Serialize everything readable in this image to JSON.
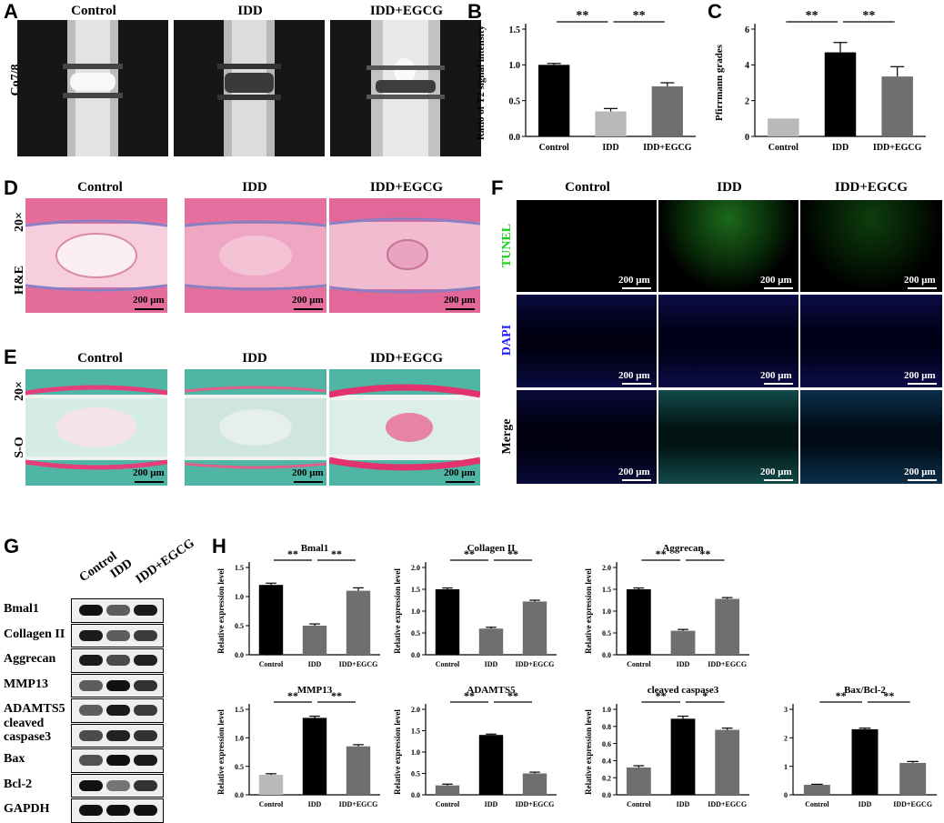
{
  "panel_letters": {
    "A": "A",
    "B": "B",
    "C": "C",
    "D": "D",
    "E": "E",
    "F": "F",
    "G": "G",
    "H": "H"
  },
  "groups": [
    "Control",
    "IDD",
    "IDD+EGCG"
  ],
  "row_labels": {
    "mri": "Co7/8",
    "he": "H&E",
    "so": "S-O",
    "mag_d": "20×",
    "mag_e": "20×",
    "tunel": "TUNEL",
    "dapi": "DAPI",
    "merge": "Merge"
  },
  "colors": {
    "tunel": "#18d018",
    "dapi": "#2020ff",
    "control_bar": "#b9b9b9",
    "idd_bar": "#000000",
    "egcg_bar": "#6f6f6f"
  },
  "scale_text": "200 μm",
  "western": {
    "columns": [
      "Control",
      "IDD",
      "IDD+EGCG"
    ],
    "rows": [
      "Bmal1",
      "Collagen II",
      "Aggrecan",
      "MMP13",
      "ADAMTS5",
      "cleaved caspase3",
      "Bax",
      "Bcl-2",
      "GAPDH"
    ]
  },
  "chart_data": [
    {
      "id": "B",
      "type": "bar",
      "categories": [
        "Control",
        "IDD",
        "IDD+EGCG"
      ],
      "values": [
        1.0,
        0.35,
        0.7
      ],
      "errors": [
        0.02,
        0.04,
        0.05
      ],
      "ylabel": "Ratio of T2 signal intensity",
      "ylim": [
        0,
        1.5
      ],
      "yticks": [
        "0.0",
        "0.5",
        "1.0",
        "1.5"
      ],
      "sig": [
        "**",
        "**"
      ],
      "bar_colors": [
        "#000000",
        "#b9b9b9",
        "#6f6f6f"
      ]
    },
    {
      "id": "C",
      "type": "bar",
      "categories": [
        "Control",
        "IDD",
        "IDD+EGCG"
      ],
      "values": [
        1.0,
        4.7,
        3.35
      ],
      "errors": [
        0,
        0.55,
        0.55
      ],
      "ylabel": "Pfirrmann grades",
      "ylim": [
        0,
        6
      ],
      "yticks": [
        "0",
        "2",
        "4",
        "6"
      ],
      "sig": [
        "**",
        "**"
      ],
      "bar_colors": [
        "#b9b9b9",
        "#000000",
        "#6f6f6f"
      ]
    },
    {
      "id": "H1",
      "type": "bar",
      "title": "Bmal1",
      "categories": [
        "Control",
        "IDD",
        "IDD+EGCG"
      ],
      "values": [
        1.2,
        0.5,
        1.1
      ],
      "errors": [
        0.03,
        0.03,
        0.05
      ],
      "ylabel": "Relative expression level",
      "ylim": [
        0,
        1.5
      ],
      "yticks": [
        "0.0",
        "0.5",
        "1.0",
        "1.5"
      ],
      "sig": [
        "**",
        "**"
      ],
      "bar_colors": [
        "#000000",
        "#6f6f6f",
        "#6f6f6f"
      ]
    },
    {
      "id": "H2",
      "type": "bar",
      "title": "Collagen II",
      "categories": [
        "Control",
        "IDD",
        "IDD+EGCG"
      ],
      "values": [
        1.5,
        0.6,
        1.22
      ],
      "errors": [
        0.03,
        0.03,
        0.03
      ],
      "ylabel": "Relative expression level",
      "ylim": [
        0,
        2.0
      ],
      "yticks": [
        "0.0",
        "0.5",
        "1.0",
        "1.5",
        "2.0"
      ],
      "sig": [
        "**",
        "**"
      ],
      "bar_colors": [
        "#000000",
        "#6f6f6f",
        "#6f6f6f"
      ]
    },
    {
      "id": "H3",
      "type": "bar",
      "title": "Aggrecan",
      "categories": [
        "Control",
        "IDD",
        "IDD+EGCG"
      ],
      "values": [
        1.5,
        0.55,
        1.28
      ],
      "errors": [
        0.03,
        0.03,
        0.03
      ],
      "ylabel": "Relative expression level",
      "ylim": [
        0,
        2.0
      ],
      "yticks": [
        "0.0",
        "0.5",
        "1.0",
        "1.5",
        "2.0"
      ],
      "sig": [
        "**",
        "**"
      ],
      "bar_colors": [
        "#000000",
        "#6f6f6f",
        "#6f6f6f"
      ]
    },
    {
      "id": "H4",
      "type": "bar",
      "title": "MMP13",
      "categories": [
        "Control",
        "IDD",
        "IDD+EGCG"
      ],
      "values": [
        0.35,
        1.35,
        0.85
      ],
      "errors": [
        0.02,
        0.03,
        0.03
      ],
      "ylabel": "Relative expression level",
      "ylim": [
        0,
        1.5
      ],
      "yticks": [
        "0.0",
        "0.5",
        "1.0",
        "1.5"
      ],
      "sig": [
        "**",
        "**"
      ],
      "bar_colors": [
        "#b9b9b9",
        "#000000",
        "#6f6f6f"
      ]
    },
    {
      "id": "H5",
      "type": "bar",
      "title": "ADAMTS5",
      "categories": [
        "Control",
        "IDD",
        "IDD+EGCG"
      ],
      "values": [
        0.22,
        1.4,
        0.5
      ],
      "errors": [
        0.03,
        0.02,
        0.03
      ],
      "ylabel": "Relative expression level",
      "ylim": [
        0,
        2.0
      ],
      "yticks": [
        "0.0",
        "0.5",
        "1.0",
        "1.5",
        "2.0"
      ],
      "sig": [
        "**",
        "**"
      ],
      "bar_colors": [
        "#6f6f6f",
        "#000000",
        "#6f6f6f"
      ]
    },
    {
      "id": "H6",
      "type": "bar",
      "title": "cleaved caspase3",
      "categories": [
        "Control",
        "IDD",
        "IDD+EGCG"
      ],
      "values": [
        0.32,
        0.89,
        0.76
      ],
      "errors": [
        0.02,
        0.03,
        0.02
      ],
      "ylabel": "Relative expression level",
      "ylim": [
        0,
        1.0
      ],
      "yticks": [
        "0.0",
        "0.2",
        "0.4",
        "0.6",
        "0.8",
        "1.0"
      ],
      "sig": [
        "**",
        "*"
      ],
      "bar_colors": [
        "#6f6f6f",
        "#000000",
        "#6f6f6f"
      ]
    },
    {
      "id": "H7",
      "type": "bar",
      "title": "Bax/Bcl-2",
      "categories": [
        "Control",
        "IDD",
        "IDD+EGCG"
      ],
      "values": [
        0.35,
        2.3,
        1.12
      ],
      "errors": [
        0.02,
        0.04,
        0.05
      ],
      "ylabel": "",
      "ylim": [
        0,
        3
      ],
      "yticks": [
        "0",
        "1",
        "2",
        "3"
      ],
      "sig": [
        "**",
        "**"
      ],
      "bar_colors": [
        "#6f6f6f",
        "#000000",
        "#6f6f6f"
      ]
    }
  ]
}
